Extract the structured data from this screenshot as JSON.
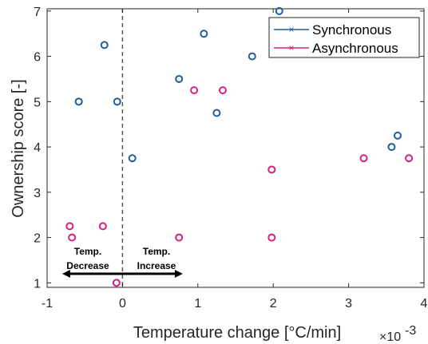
{
  "chart_data": {
    "type": "scatter",
    "xlabel": "Temperature change [°C/min]",
    "ylabel": "Ownership score [-]",
    "x_exponent_label": "×10",
    "x_exponent_power": "-3",
    "xlim": [
      -1,
      4
    ],
    "ylim": [
      0.9,
      7.05
    ],
    "x_ticks": [
      -1,
      0,
      1,
      2,
      3,
      4
    ],
    "y_ticks": [
      1,
      2,
      3,
      4,
      5,
      6,
      7
    ],
    "x_tick_labels": [
      "-1",
      "0",
      "1",
      "2",
      "3",
      "4"
    ],
    "y_tick_labels": [
      "1",
      "2",
      "3",
      "4",
      "5",
      "6",
      "7"
    ],
    "grid": false,
    "legend_position": "top-right",
    "zero_line": {
      "x": 0,
      "style": "dashed"
    },
    "series": [
      {
        "name": "Synchronous",
        "color": "#1f5fa0",
        "marker": "circle",
        "points": [
          {
            "x": -0.58,
            "y": 5.0
          },
          {
            "x": -0.24,
            "y": 6.25
          },
          {
            "x": -0.07,
            "y": 5.0
          },
          {
            "x": 0.13,
            "y": 3.75
          },
          {
            "x": 0.75,
            "y": 5.5
          },
          {
            "x": 1.08,
            "y": 6.5
          },
          {
            "x": 1.25,
            "y": 4.75
          },
          {
            "x": 1.72,
            "y": 6.0
          },
          {
            "x": 2.08,
            "y": 7.0
          },
          {
            "x": 3.57,
            "y": 4.0
          },
          {
            "x": 3.65,
            "y": 4.25
          }
        ]
      },
      {
        "name": "Asynchronous",
        "color": "#d4217e",
        "marker": "circle",
        "points": [
          {
            "x": -0.7,
            "y": 2.25
          },
          {
            "x": -0.67,
            "y": 2.0
          },
          {
            "x": -0.26,
            "y": 2.25
          },
          {
            "x": -0.08,
            "y": 1.0
          },
          {
            "x": 0.75,
            "y": 2.0
          },
          {
            "x": 0.95,
            "y": 5.25
          },
          {
            "x": 1.33,
            "y": 5.25
          },
          {
            "x": 1.98,
            "y": 3.5
          },
          {
            "x": 1.98,
            "y": 2.0
          },
          {
            "x": 3.2,
            "y": 3.75
          },
          {
            "x": 3.8,
            "y": 3.75
          }
        ]
      }
    ],
    "annotations": {
      "decrease_line1": "Temp.",
      "decrease_line2": "Decrease",
      "increase_line1": "Temp.",
      "increase_line2": "Increase",
      "arrow": {
        "from": -0.8,
        "to": 0.8,
        "y": 1.2
      }
    }
  }
}
